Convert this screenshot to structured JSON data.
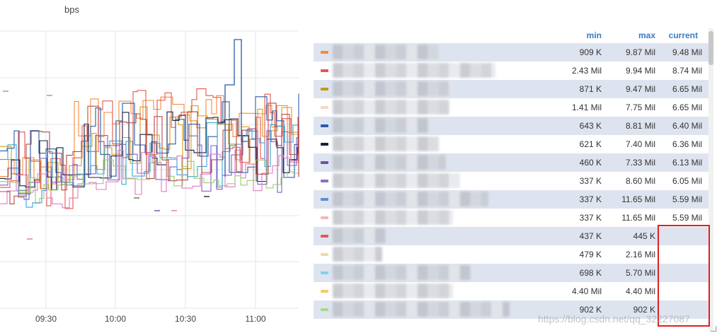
{
  "chart": {
    "y_axis_title": "bps",
    "x_ticks": [
      "09:30",
      "10:00",
      "10:30",
      "11:00"
    ],
    "series_colors": [
      "#f28b3c",
      "#e8574c",
      "#d6a01a",
      "#2b5ba8",
      "#1a1f3d",
      "#8a5cc7",
      "#3aa6d8",
      "#e27ac0",
      "#9bcc6a",
      "#b34c4c"
    ]
  },
  "legend": {
    "headers": {
      "min": "min",
      "max": "max",
      "current": "current",
      "sort_icon": "caret-down-icon"
    },
    "rows": [
      {
        "color": "#f28b3c",
        "min": "909 K",
        "max": "9.87 Mil",
        "current": "9.48 Mil"
      },
      {
        "color": "#e8574c",
        "min": "2.43 Mil",
        "max": "9.94 Mil",
        "current": "8.74 Mil"
      },
      {
        "color": "#c39a12",
        "min": "871 K",
        "max": "9.47 Mil",
        "current": "6.65 Mil"
      },
      {
        "color": "#f6d7c3",
        "min": "1.41 Mil",
        "max": "7.75 Mil",
        "current": "6.65 Mil"
      },
      {
        "color": "#2b5ba8",
        "min": "643 K",
        "max": "8.81 Mil",
        "current": "6.40 Mil"
      },
      {
        "color": "#1a1f3d",
        "min": "621 K",
        "max": "7.40 Mil",
        "current": "6.36 Mil"
      },
      {
        "color": "#6f51a8",
        "min": "460 K",
        "max": "7.33 Mil",
        "current": "6.13 Mil"
      },
      {
        "color": "#8a6fc2",
        "min": "337 K",
        "max": "8.60 Mil",
        "current": "6.05 Mil"
      },
      {
        "color": "#5a8fd0",
        "min": "337 K",
        "max": "11.65 Mil",
        "current": "5.59 Mil"
      },
      {
        "color": "#f2b8b8",
        "min": "337 K",
        "max": "11.65 Mil",
        "current": "5.59 Mil"
      },
      {
        "color": "#e8574c",
        "min": "437 K",
        "max": "445 K",
        "current": ""
      },
      {
        "color": "#f3d9a4",
        "min": "479 K",
        "max": "2.16 Mil",
        "current": ""
      },
      {
        "color": "#7fd3ea",
        "min": "698 K",
        "max": "5.70 Mil",
        "current": ""
      },
      {
        "color": "#f6c86a",
        "min": "4.40 Mil",
        "max": "4.40 Mil",
        "current": ""
      },
      {
        "color": "#a7d98a",
        "min": "902 K",
        "max": "902 K",
        "current": ""
      }
    ]
  },
  "watermark": "https://blog.csdn.net/qq_32227087"
}
